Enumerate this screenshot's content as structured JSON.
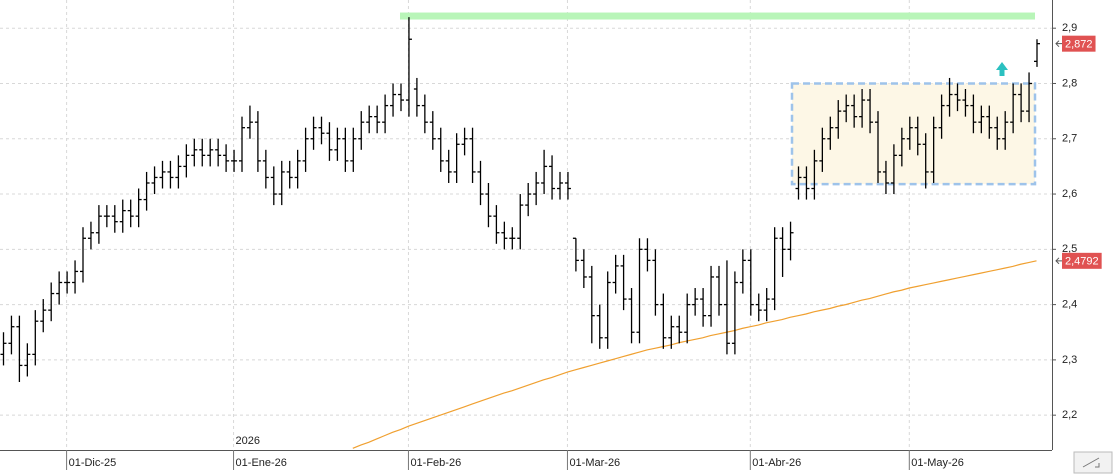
{
  "chart_data": {
    "type": "ohlc",
    "categories": [
      null,
      null,
      null,
      null,
      null,
      null,
      null,
      null,
      "01-Dic-25",
      null,
      null,
      null,
      null,
      null,
      null,
      null,
      null,
      null,
      null,
      null,
      null,
      null,
      null,
      null,
      null,
      null,
      null,
      null,
      null,
      "01-Ene-26",
      null,
      null,
      null,
      null,
      null,
      null,
      null,
      null,
      null,
      null,
      null,
      null,
      null,
      null,
      null,
      null,
      null,
      null,
      null,
      null,
      null,
      "01-Feb-26",
      null,
      null,
      null,
      null,
      null,
      null,
      null,
      null,
      null,
      null,
      null,
      null,
      null,
      null,
      null,
      null,
      null,
      null,
      null,
      "01-Mar-26",
      null,
      null,
      null,
      null,
      null,
      null,
      null,
      null,
      null,
      null,
      null,
      null,
      null,
      null,
      null,
      null,
      null,
      null,
      null,
      null,
      null,
      null,
      "01-Abr-26",
      null,
      null,
      null,
      null,
      null,
      null,
      null,
      null,
      null,
      null,
      null,
      null,
      null,
      null,
      null,
      null,
      null,
      null,
      null,
      "01-May-26",
      null,
      null,
      null,
      null,
      null,
      null,
      null,
      null,
      null,
      null,
      null,
      null,
      null,
      null,
      null,
      null
    ],
    "year_label": "2026",
    "ohlc": {
      "color": "#000000",
      "open": [
        2.31,
        2.33,
        2.36,
        2.29,
        2.31,
        2.37,
        2.39,
        2.42,
        2.44,
        2.44,
        2.46,
        2.52,
        2.53,
        2.56,
        2.56,
        2.55,
        2.57,
        2.56,
        2.59,
        2.62,
        2.63,
        2.64,
        2.63,
        2.65,
        2.67,
        2.68,
        2.67,
        2.68,
        2.67,
        2.66,
        2.66,
        2.72,
        2.73,
        2.66,
        2.63,
        2.6,
        2.64,
        2.63,
        2.66,
        2.7,
        2.72,
        2.71,
        2.68,
        2.7,
        2.66,
        2.7,
        2.73,
        2.74,
        2.73,
        2.76,
        2.78,
        2.77,
        2.79,
        2.76,
        2.73,
        2.7,
        2.66,
        2.64,
        2.69,
        2.7,
        2.64,
        2.6,
        2.56,
        2.53,
        2.52,
        2.52,
        2.58,
        2.6,
        2.62,
        2.65,
        2.61,
        2.62,
        2.52,
        2.48,
        2.45,
        2.38,
        2.34,
        2.44,
        2.47,
        2.41,
        2.35,
        2.5,
        2.48,
        2.4,
        2.34,
        2.36,
        2.35,
        2.4,
        2.41,
        2.38,
        2.45,
        2.4,
        2.33,
        2.44,
        2.48,
        2.4,
        2.39,
        2.41,
        2.52,
        2.5,
        2.61,
        2.63,
        2.61,
        2.66,
        2.7,
        2.72,
        2.75,
        2.76,
        2.74,
        2.77,
        2.73,
        2.64,
        2.62,
        2.67,
        2.7,
        2.72,
        2.69,
        2.64,
        2.72,
        2.76,
        2.78,
        2.77,
        2.76,
        2.73,
        2.74,
        2.72,
        2.7,
        2.73,
        2.78,
        2.75,
        2.84
      ],
      "high": [
        2.35,
        2.38,
        2.38,
        2.33,
        2.39,
        2.41,
        2.44,
        2.46,
        2.46,
        2.48,
        2.54,
        2.55,
        2.58,
        2.58,
        2.58,
        2.59,
        2.59,
        2.61,
        2.64,
        2.65,
        2.66,
        2.66,
        2.67,
        2.69,
        2.7,
        2.7,
        2.7,
        2.7,
        2.69,
        2.68,
        2.74,
        2.76,
        2.75,
        2.68,
        2.65,
        2.66,
        2.66,
        2.68,
        2.72,
        2.74,
        2.74,
        2.73,
        2.72,
        2.72,
        2.72,
        2.75,
        2.76,
        2.76,
        2.78,
        2.8,
        2.8,
        2.92,
        2.81,
        2.78,
        2.75,
        2.72,
        2.68,
        2.71,
        2.72,
        2.72,
        2.66,
        2.62,
        2.58,
        2.55,
        2.54,
        2.6,
        2.62,
        2.64,
        2.68,
        2.67,
        2.64,
        2.64,
        2.52,
        2.5,
        2.47,
        2.4,
        2.46,
        2.49,
        2.49,
        2.43,
        2.52,
        2.52,
        2.5,
        2.42,
        2.38,
        2.38,
        2.42,
        2.43,
        2.43,
        2.47,
        2.47,
        2.48,
        2.46,
        2.5,
        2.5,
        2.42,
        2.43,
        2.54,
        2.54,
        2.55,
        2.65,
        2.65,
        2.68,
        2.72,
        2.74,
        2.77,
        2.78,
        2.78,
        2.79,
        2.79,
        2.75,
        2.66,
        2.69,
        2.72,
        2.74,
        2.74,
        2.71,
        2.74,
        2.78,
        2.81,
        2.8,
        2.79,
        2.78,
        2.76,
        2.76,
        2.74,
        2.75,
        2.8,
        2.8,
        2.82,
        2.88
      ],
      "low": [
        2.29,
        2.31,
        2.26,
        2.27,
        2.29,
        2.35,
        2.37,
        2.4,
        2.42,
        2.42,
        2.44,
        2.5,
        2.51,
        2.54,
        2.53,
        2.53,
        2.54,
        2.54,
        2.57,
        2.6,
        2.61,
        2.61,
        2.61,
        2.63,
        2.65,
        2.65,
        2.65,
        2.65,
        2.64,
        2.64,
        2.64,
        2.7,
        2.64,
        2.61,
        2.58,
        2.58,
        2.61,
        2.61,
        2.64,
        2.68,
        2.69,
        2.66,
        2.66,
        2.64,
        2.64,
        2.68,
        2.71,
        2.71,
        2.71,
        2.74,
        2.75,
        2.74,
        2.74,
        2.71,
        2.68,
        2.64,
        2.62,
        2.62,
        2.67,
        2.62,
        2.58,
        2.54,
        2.51,
        2.5,
        2.5,
        2.5,
        2.56,
        2.58,
        2.6,
        2.59,
        2.59,
        2.59,
        2.46,
        2.43,
        2.33,
        2.32,
        2.32,
        2.42,
        2.39,
        2.33,
        2.33,
        2.46,
        2.38,
        2.32,
        2.32,
        2.33,
        2.33,
        2.38,
        2.36,
        2.36,
        2.38,
        2.31,
        2.31,
        2.42,
        2.38,
        2.37,
        2.37,
        2.39,
        2.45,
        2.48,
        2.59,
        2.59,
        2.59,
        2.64,
        2.68,
        2.7,
        2.73,
        2.72,
        2.72,
        2.71,
        2.62,
        2.6,
        2.6,
        2.65,
        2.68,
        2.67,
        2.61,
        2.62,
        2.7,
        2.74,
        2.75,
        2.74,
        2.71,
        2.71,
        2.7,
        2.68,
        2.68,
        2.71,
        2.73,
        2.73,
        2.83
      ],
      "close": [
        2.33,
        2.36,
        2.29,
        2.31,
        2.37,
        2.39,
        2.42,
        2.44,
        2.44,
        2.46,
        2.52,
        2.53,
        2.56,
        2.56,
        2.55,
        2.57,
        2.56,
        2.59,
        2.62,
        2.63,
        2.64,
        2.63,
        2.65,
        2.67,
        2.68,
        2.67,
        2.68,
        2.67,
        2.66,
        2.66,
        2.72,
        2.73,
        2.66,
        2.63,
        2.6,
        2.64,
        2.63,
        2.66,
        2.7,
        2.72,
        2.71,
        2.68,
        2.7,
        2.66,
        2.7,
        2.73,
        2.74,
        2.73,
        2.76,
        2.78,
        2.77,
        2.88,
        2.76,
        2.73,
        2.7,
        2.66,
        2.64,
        2.69,
        2.7,
        2.64,
        2.6,
        2.56,
        2.53,
        2.52,
        2.52,
        2.58,
        2.6,
        2.62,
        2.65,
        2.61,
        2.62,
        2.61,
        2.48,
        2.45,
        2.38,
        2.34,
        2.44,
        2.47,
        2.41,
        2.35,
        2.5,
        2.48,
        2.4,
        2.34,
        2.36,
        2.35,
        2.4,
        2.41,
        2.38,
        2.45,
        2.4,
        2.33,
        2.44,
        2.48,
        2.4,
        2.39,
        2.41,
        2.52,
        2.5,
        2.53,
        2.63,
        2.61,
        2.66,
        2.7,
        2.72,
        2.75,
        2.76,
        2.74,
        2.77,
        2.73,
        2.64,
        2.62,
        2.67,
        2.7,
        2.72,
        2.69,
        2.64,
        2.72,
        2.76,
        2.78,
        2.77,
        2.76,
        2.73,
        2.74,
        2.72,
        2.7,
        2.73,
        2.78,
        2.75,
        2.8,
        2.872
      ]
    },
    "moving_average": {
      "color": "#f0a030",
      "values": [
        null,
        null,
        null,
        null,
        null,
        null,
        null,
        null,
        null,
        null,
        null,
        null,
        null,
        null,
        null,
        null,
        null,
        null,
        null,
        null,
        null,
        null,
        null,
        null,
        null,
        null,
        null,
        null,
        null,
        null,
        null,
        null,
        null,
        null,
        null,
        null,
        null,
        null,
        null,
        null,
        null,
        null,
        null,
        null,
        2.14,
        2.146,
        2.151,
        2.157,
        2.163,
        2.169,
        2.174,
        2.18,
        2.185,
        2.19,
        2.195,
        2.2,
        2.205,
        2.21,
        2.215,
        2.22,
        2.225,
        2.23,
        2.235,
        2.24,
        2.244,
        2.249,
        2.254,
        2.259,
        2.264,
        2.268,
        2.273,
        2.278,
        2.282,
        2.286,
        2.29,
        2.294,
        2.298,
        2.302,
        2.306,
        2.31,
        2.314,
        2.318,
        2.321,
        2.324,
        2.327,
        2.331,
        2.334,
        2.337,
        2.34,
        2.344,
        2.347,
        2.35,
        2.353,
        2.357,
        2.36,
        2.363,
        2.367,
        2.37,
        2.373,
        2.377,
        2.38,
        2.383,
        2.387,
        2.39,
        2.393,
        2.397,
        2.4,
        2.404,
        2.408,
        2.411,
        2.415,
        2.419,
        2.423,
        2.426,
        2.43,
        2.433,
        2.436,
        2.439,
        2.442,
        2.445,
        2.448,
        2.451,
        2.454,
        2.457,
        2.46,
        2.463,
        2.466,
        2.469,
        2.473,
        2.476,
        2.4792
      ]
    },
    "price_labels": [
      {
        "value": 2.872,
        "label": "2,872"
      },
      {
        "value": 2.4792,
        "label": "2,4792"
      }
    ],
    "resistance_level": {
      "value": 2.922,
      "color": "#b8f5b8"
    },
    "range_box": {
      "top": 2.8,
      "bottom": 2.618,
      "fill": "#fdf7e6",
      "stroke": "#9ec3ea"
    },
    "ylim": [
      2.137,
      2.951
    ],
    "yticks": [
      {
        "value": 2.2,
        "label": "2,2"
      },
      {
        "value": 2.3,
        "label": "2,3"
      },
      {
        "value": 2.4,
        "label": "2,4"
      },
      {
        "value": 2.5,
        "label": "2,5"
      },
      {
        "value": 2.6,
        "label": "2,6"
      },
      {
        "value": 2.7,
        "label": "2,7"
      },
      {
        "value": 2.8,
        "label": "2,8"
      },
      {
        "value": 2.9,
        "label": "2,9"
      }
    ],
    "grid": true
  }
}
